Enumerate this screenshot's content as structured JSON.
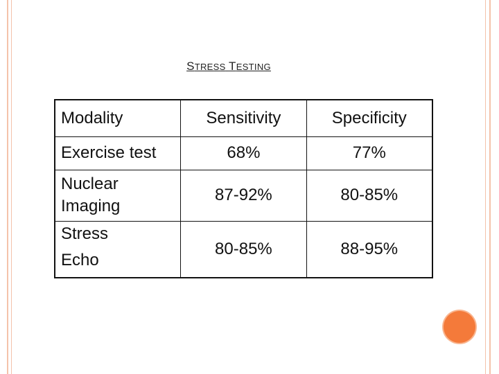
{
  "title": {
    "first_initial": "S",
    "first_rest": "TRESS",
    "second_initial": "T",
    "second_rest": "ESTING"
  },
  "table": {
    "headers": [
      "Modality",
      "Sensitivity",
      "Specificity"
    ],
    "rows": [
      {
        "modality_lines": [
          "Exercise test"
        ],
        "sensitivity": "68%",
        "specificity": "77%"
      },
      {
        "modality_lines": [
          "Nuclear",
          "Imaging"
        ],
        "sensitivity": "87-92%",
        "specificity": "80-85%"
      },
      {
        "modality_lines": [
          "Stress",
          "Echo"
        ],
        "sensitivity": "80-85%",
        "specificity": "88-95%"
      }
    ]
  },
  "colors": {
    "border_accent": "#f4c2aa",
    "circle_accent": "#f47a3a"
  }
}
